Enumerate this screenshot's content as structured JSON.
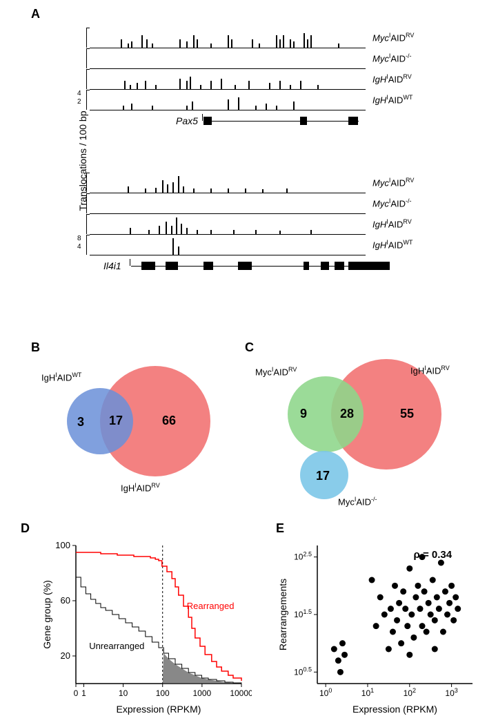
{
  "letters": {
    "A": "A",
    "B": "B",
    "C": "C",
    "D": "D",
    "E": "E"
  },
  "panelA": {
    "ylabel": "Translocations / 100 bp",
    "pax5": {
      "gene": "Pax5",
      "tracks": [
        {
          "label": "Myc",
          "sup1": "I",
          "mid": "AID",
          "sup2": "RV",
          "bars": [
            [
              45,
              2
            ],
            [
              55,
              1
            ],
            [
              60,
              1.5
            ],
            [
              75,
              3
            ],
            [
              82,
              2
            ],
            [
              90,
              1
            ],
            [
              130,
              2
            ],
            [
              140,
              1.5
            ],
            [
              150,
              3
            ],
            [
              155,
              2
            ],
            [
              175,
              1
            ],
            [
              200,
              3
            ],
            [
              205,
              2
            ],
            [
              235,
              2
            ],
            [
              245,
              1
            ],
            [
              270,
              3
            ],
            [
              275,
              2
            ],
            [
              280,
              3
            ],
            [
              290,
              2
            ],
            [
              295,
              1.5
            ],
            [
              310,
              3.5
            ],
            [
              315,
              2
            ],
            [
              320,
              3
            ],
            [
              360,
              1
            ]
          ]
        },
        {
          "label": "Myc",
          "sup1": "I",
          "mid": "AID",
          "sup2": "-/-",
          "bars": []
        },
        {
          "label": "IgH",
          "sup1": "I",
          "mid": "AID",
          "sup2": "RV",
          "bars": [
            [
              50,
              2
            ],
            [
              58,
              1
            ],
            [
              68,
              1.5
            ],
            [
              80,
              2
            ],
            [
              95,
              1
            ],
            [
              130,
              2.5
            ],
            [
              140,
              2
            ],
            [
              145,
              3
            ],
            [
              160,
              1
            ],
            [
              175,
              2
            ],
            [
              190,
              2.5
            ],
            [
              210,
              1
            ],
            [
              230,
              2
            ],
            [
              260,
              1.5
            ],
            [
              275,
              2
            ],
            [
              290,
              1
            ],
            [
              305,
              2
            ],
            [
              330,
              1
            ]
          ]
        },
        {
          "label": "IgH",
          "sup1": "I",
          "mid": "AID",
          "sup2": "WT",
          "bars": [
            [
              48,
              1
            ],
            [
              60,
              1.5
            ],
            [
              90,
              1
            ],
            [
              140,
              1
            ],
            [
              148,
              2
            ],
            [
              200,
              2.5
            ],
            [
              215,
              3
            ],
            [
              240,
              1
            ],
            [
              255,
              1.5
            ],
            [
              270,
              1
            ],
            [
              295,
              2
            ]
          ],
          "ticks": [
            "4",
            "2"
          ]
        }
      ],
      "exons": [
        [
          165,
          12
        ],
        [
          305,
          10
        ],
        [
          375,
          14
        ]
      ],
      "geneStart": 165,
      "geneEnd": 390
    },
    "il4i1": {
      "gene": "Il4i1",
      "tracks": [
        {
          "label": "Myc",
          "sup1": "I",
          "mid": "AID",
          "sup2": "RV",
          "bars": [
            [
              55,
              1.5
            ],
            [
              80,
              1
            ],
            [
              95,
              1.2
            ],
            [
              105,
              3
            ],
            [
              112,
              2
            ],
            [
              120,
              2.5
            ],
            [
              128,
              4
            ],
            [
              135,
              1.5
            ],
            [
              150,
              1
            ],
            [
              175,
              1
            ],
            [
              200,
              1
            ],
            [
              225,
              1
            ],
            [
              250,
              0.8
            ],
            [
              285,
              1
            ]
          ]
        },
        {
          "label": "Myc",
          "sup1": "I",
          "mid": "AID",
          "sup2": "-/-",
          "bars": []
        },
        {
          "label": "IgH",
          "sup1": "I",
          "mid": "AID",
          "sup2": "RV",
          "bars": [
            [
              58,
              1.5
            ],
            [
              85,
              1
            ],
            [
              100,
              2
            ],
            [
              110,
              3
            ],
            [
              118,
              2
            ],
            [
              125,
              4
            ],
            [
              132,
              2.5
            ],
            [
              140,
              1.5
            ],
            [
              155,
              1
            ],
            [
              175,
              1
            ],
            [
              208,
              1
            ],
            [
              240,
              1
            ],
            [
              275,
              0.8
            ],
            [
              320,
              1
            ]
          ]
        },
        {
          "label": "IgH",
          "sup1": "I",
          "mid": "AID",
          "sup2": "WT",
          "bars": [
            [
              120,
              4
            ],
            [
              128,
              2
            ]
          ],
          "ticks": [
            "8",
            "4"
          ]
        }
      ],
      "exons": [
        [
          75,
          20
        ],
        [
          110,
          18
        ],
        [
          165,
          14
        ],
        [
          215,
          20
        ],
        [
          310,
          8
        ],
        [
          335,
          12
        ],
        [
          355,
          14
        ],
        [
          375,
          60
        ]
      ],
      "geneStart": 60,
      "geneEnd": 435
    }
  },
  "panelB": {
    "left_label": {
      "pre": "IgH",
      "sup1": "I",
      "mid": "AID",
      "sup2": "WT"
    },
    "right_label": {
      "pre": "IgH",
      "sup1": "I",
      "mid": "AID",
      "sup2": "RV"
    },
    "left_n": "3",
    "overlap_n": "17",
    "right_n": "66",
    "left_color": "#6a8fd8",
    "left_opacity": 0.85,
    "right_color": "#f16b6b",
    "right_opacity": 0.85,
    "overlap_color": "#d8a7dd"
  },
  "panelC": {
    "left_label": {
      "pre": "Myc",
      "sup1": "I",
      "mid": "AID",
      "sup2": "RV"
    },
    "right_label": {
      "pre": "IgH",
      "sup1": "I",
      "mid": "AID",
      "sup2": "RV"
    },
    "bottom_label": {
      "pre": "Myc",
      "sup1": "I",
      "mid": "AID",
      "sup2": "-/-"
    },
    "left_n": "9",
    "overlap_n": "28",
    "right_n": "55",
    "bottom_n": "17",
    "left_color": "#8dd68a",
    "left_opacity": 0.88,
    "right_color": "#f16b6b",
    "right_opacity": 0.85,
    "overlap_color": "#eff0a3",
    "bottom_color": "#7cc7e8"
  },
  "panelD": {
    "xlabel": "Expression (RPKM)",
    "ylabel": "Gene group (%)",
    "rearranged": "Rearranged",
    "unrearranged": "Unrearranged",
    "yticks": [
      "20",
      "60",
      "100"
    ],
    "xticks": [
      "0",
      "1",
      "10",
      "100",
      "1000",
      "10000"
    ],
    "vline": 100,
    "red_color": "#ff0000",
    "black_color": "#000000",
    "fill_color": "#555555",
    "red_path": [
      [
        0,
        95
      ],
      [
        5,
        95
      ],
      [
        10,
        95
      ],
      [
        15,
        94
      ],
      [
        20,
        94
      ],
      [
        25,
        93
      ],
      [
        30,
        93
      ],
      [
        35,
        92
      ],
      [
        40,
        92
      ],
      [
        45,
        91
      ],
      [
        48,
        90
      ],
      [
        50,
        89
      ],
      [
        52,
        85
      ],
      [
        55,
        81
      ],
      [
        58,
        76
      ],
      [
        60,
        70
      ],
      [
        62,
        64
      ],
      [
        65,
        56
      ],
      [
        68,
        48
      ],
      [
        70,
        40
      ],
      [
        72,
        33
      ],
      [
        75,
        27
      ],
      [
        78,
        21
      ],
      [
        82,
        16
      ],
      [
        85,
        12
      ],
      [
        88,
        9
      ],
      [
        92,
        6
      ],
      [
        95,
        4
      ],
      [
        100,
        2
      ]
    ],
    "black_path": [
      [
        0,
        77
      ],
      [
        3,
        70
      ],
      [
        6,
        65
      ],
      [
        9,
        61
      ],
      [
        12,
        58
      ],
      [
        15,
        55
      ],
      [
        18,
        53
      ],
      [
        22,
        50
      ],
      [
        26,
        47
      ],
      [
        30,
        44
      ],
      [
        34,
        41
      ],
      [
        38,
        38
      ],
      [
        42,
        34
      ],
      [
        46,
        30
      ],
      [
        50,
        26
      ],
      [
        53,
        22
      ],
      [
        56,
        18
      ],
      [
        60,
        14
      ],
      [
        64,
        11
      ],
      [
        68,
        8
      ],
      [
        72,
        6
      ],
      [
        76,
        4
      ],
      [
        80,
        3
      ],
      [
        85,
        2
      ],
      [
        90,
        1
      ],
      [
        95,
        0.5
      ],
      [
        100,
        0.2
      ]
    ]
  },
  "panelE": {
    "xlabel": "Expression (RPKM)",
    "ylabel": "Rearrangements",
    "rho_text": "ρ = 0.34",
    "yticks": [
      "10",
      "10",
      "10"
    ],
    "ytick_sup": [
      "0.5",
      "1.5",
      "2.5"
    ],
    "xticks": [
      "10",
      "10",
      "10",
      "10"
    ],
    "xtick_sup": [
      "0",
      "1",
      "2",
      "3"
    ],
    "points": [
      [
        0.2,
        0.9
      ],
      [
        0.3,
        0.7
      ],
      [
        0.35,
        0.5
      ],
      [
        0.4,
        1.0
      ],
      [
        0.45,
        0.8
      ],
      [
        1.1,
        2.1
      ],
      [
        1.2,
        1.3
      ],
      [
        1.3,
        1.8
      ],
      [
        1.4,
        1.5
      ],
      [
        1.5,
        0.9
      ],
      [
        1.55,
        1.6
      ],
      [
        1.6,
        1.2
      ],
      [
        1.65,
        2.0
      ],
      [
        1.7,
        1.4
      ],
      [
        1.75,
        1.7
      ],
      [
        1.8,
        1.0
      ],
      [
        1.85,
        1.9
      ],
      [
        1.9,
        1.6
      ],
      [
        1.95,
        1.3
      ],
      [
        2.0,
        2.3
      ],
      [
        2.05,
        1.5
      ],
      [
        2.1,
        1.1
      ],
      [
        2.15,
        1.8
      ],
      [
        2.2,
        2.0
      ],
      [
        2.25,
        1.6
      ],
      [
        2.3,
        1.3
      ],
      [
        2.35,
        1.9
      ],
      [
        2.4,
        1.2
      ],
      [
        2.45,
        1.7
      ],
      [
        2.5,
        1.5
      ],
      [
        2.55,
        2.1
      ],
      [
        2.6,
        1.4
      ],
      [
        2.65,
        1.8
      ],
      [
        2.7,
        1.6
      ],
      [
        2.75,
        2.4
      ],
      [
        2.8,
        1.2
      ],
      [
        2.85,
        1.9
      ],
      [
        2.9,
        1.5
      ],
      [
        2.95,
        1.7
      ],
      [
        3.0,
        2.0
      ],
      [
        3.05,
        1.4
      ],
      [
        3.1,
        1.8
      ],
      [
        3.15,
        1.6
      ],
      [
        2.0,
        0.8
      ],
      [
        2.3,
        2.5
      ],
      [
        2.6,
        0.9
      ]
    ],
    "point_color": "#000000"
  }
}
